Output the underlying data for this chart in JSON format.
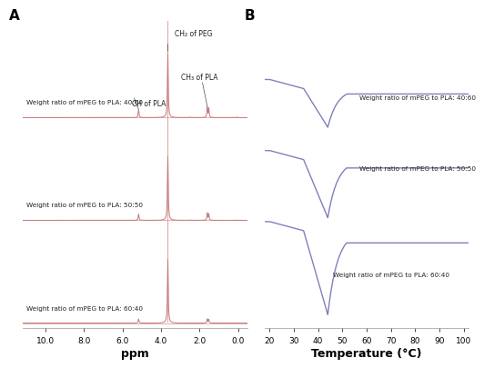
{
  "panel_a_label": "A",
  "panel_b_label": "B",
  "nmr_xlabel": "ppm",
  "nmr_xlim": [
    11.2,
    -0.5
  ],
  "nmr_xticks": [
    10.0,
    8.0,
    6.0,
    4.0,
    2.0,
    0.0
  ],
  "dsc_xlabel": "Temperature (°C)",
  "dsc_xlim": [
    18,
    102
  ],
  "dsc_xticks": [
    20,
    30,
    40,
    50,
    60,
    70,
    80,
    90,
    100
  ],
  "nmr_line_color": "#c87878",
  "dsc_line_color": "#8080bb",
  "annotation_color": "#222222",
  "background_color": "#ffffff",
  "nmr_labels": [
    "Weight ratio of mPEG to PLA: 40:60",
    "Weight ratio of mPEG to PLA: 50:50",
    "Weight ratio of mPEG to PLA: 60:40"
  ],
  "dsc_labels": [
    "Weight ratio of mPEG to PLA: 40:60",
    "Weight ratio of mPEG to PLA: 50:50",
    "Weight ratio of mPEG to PLA: 60:40"
  ],
  "ch2_peg_annotation": "CH₂ of PEG",
  "ch3_pla_annotation": "CH₃ of PLA",
  "ch_pla_annotation": "CH of PLA"
}
